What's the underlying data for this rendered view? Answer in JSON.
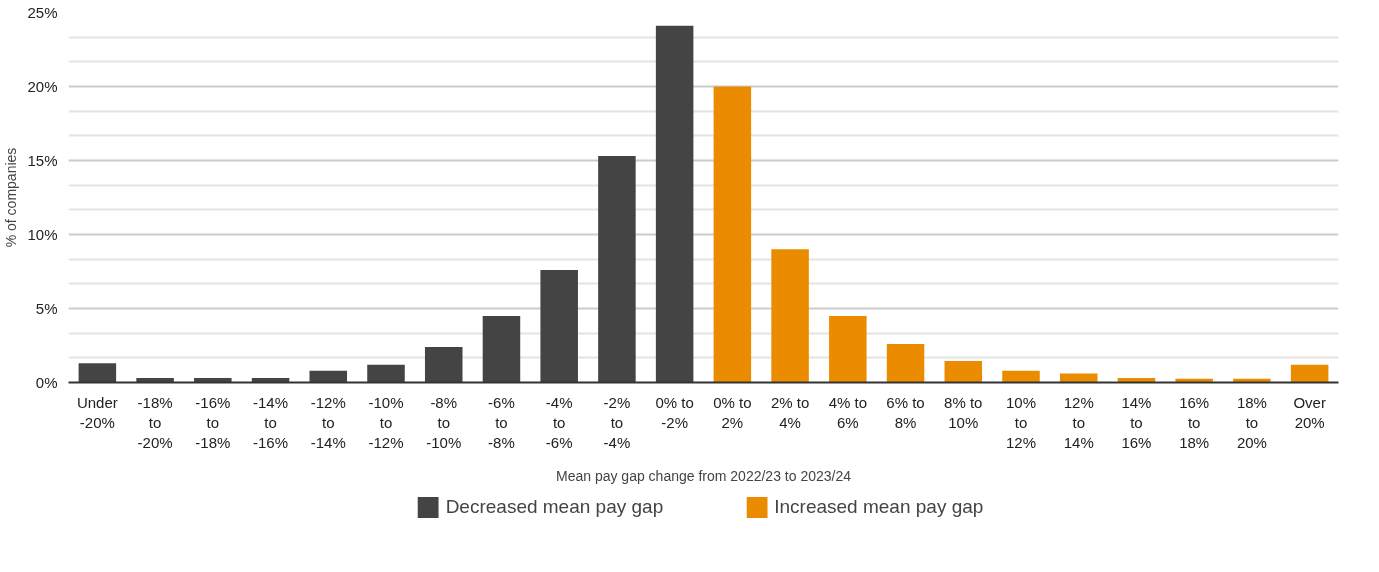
{
  "chart_data": {
    "type": "bar",
    "xlabel": "Mean pay gap change from 2022/23 to 2023/24",
    "ylabel": "% of companies",
    "categories": [
      "Under -20%",
      "-18% to -20%",
      "-16% to -18%",
      "-14% to -16%",
      "-12% to -14%",
      "-10% to -12%",
      "-8% to -10%",
      "-6% to -8%",
      "-4% to -6%",
      "-2% to -4%",
      "0% to -2%",
      "0% to 2%",
      "2% to 4%",
      "4% to 6%",
      "6% to 8%",
      "8% to 10%",
      "10% to 12%",
      "12% to 14%",
      "14% to 16%",
      "16% to 18%",
      "18% to 20%",
      "Over 20%"
    ],
    "series": [
      {
        "name": "Decreased mean pay gap",
        "color": "#444444",
        "values": [
          1.3,
          0.3,
          0.3,
          0.3,
          0.8,
          1.2,
          2.4,
          4.5,
          7.6,
          15.3,
          24.1,
          null,
          null,
          null,
          null,
          null,
          null,
          null,
          null,
          null,
          null,
          null
        ]
      },
      {
        "name": "Increased mean pay gap",
        "color": "#eb8c00",
        "values": [
          null,
          null,
          null,
          null,
          null,
          null,
          null,
          null,
          null,
          null,
          null,
          20.0,
          9.0,
          4.5,
          2.6,
          1.45,
          0.8,
          0.6,
          0.3,
          0.25,
          0.25,
          1.2
        ]
      }
    ],
    "ylim": [
      0,
      25
    ],
    "yticks": [
      {
        "value": 0,
        "label": "0%"
      },
      {
        "value": 5,
        "label": "5%"
      },
      {
        "value": 10,
        "label": "10%"
      },
      {
        "value": 15,
        "label": "15%"
      },
      {
        "value": 20,
        "label": "20%"
      },
      {
        "value": 25,
        "label": "25%"
      }
    ],
    "grid": "y",
    "legend": "bottom"
  }
}
